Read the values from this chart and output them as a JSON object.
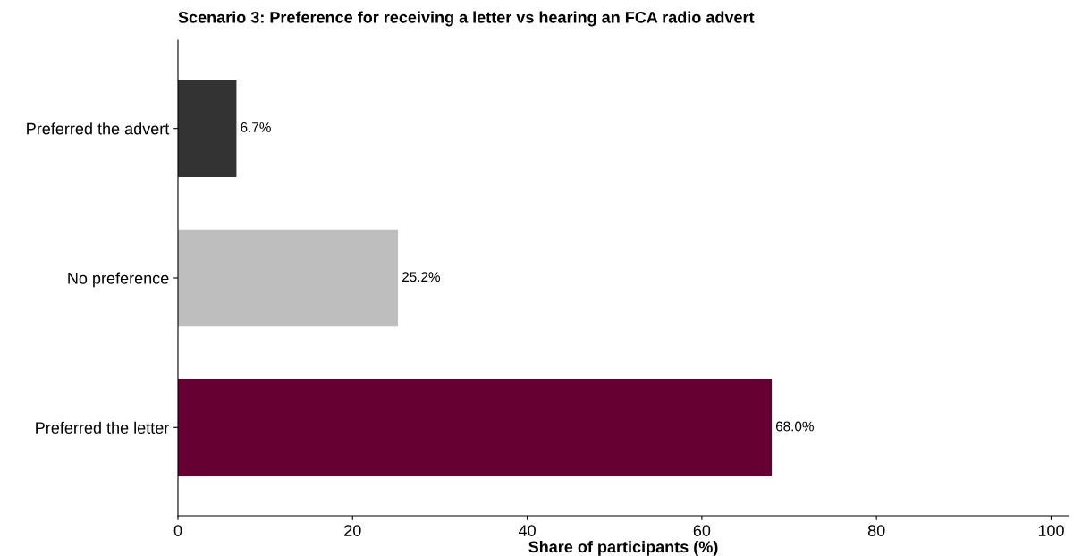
{
  "chart_data": {
    "type": "bar",
    "orientation": "horizontal",
    "title": "Scenario 3: Preference for receiving a letter vs hearing an FCA radio advert",
    "xlabel": "Share of participants (%)",
    "categories": [
      "Preferred the advert",
      "No preference",
      "Preferred the letter"
    ],
    "values": [
      6.7,
      25.2,
      68.0
    ],
    "colors": [
      "#333333",
      "#bebebe",
      "#660033"
    ],
    "value_labels": [
      "6.7%",
      "25.2%",
      "68.0%"
    ],
    "xlim": [
      0,
      102
    ],
    "xticks": [
      0,
      20,
      40,
      60,
      80,
      100
    ],
    "grid": false,
    "legend": false
  }
}
